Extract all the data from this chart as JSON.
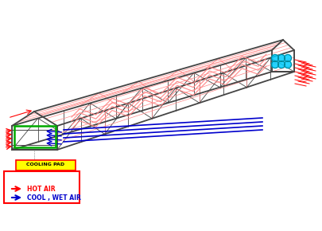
{
  "bg_color": "#ffffff",
  "dark_gray": "#444444",
  "red": "#ff0000",
  "red_light": "#ff8888",
  "blue": "#0000cc",
  "blue_light": "#6666ff",
  "green": "#00aa00",
  "cyan": "#00ccff",
  "yellow": "#ffff00",
  "cooling_pad_label": "COOLING PAD",
  "hot_air_label": "HOT AIR",
  "cool_wet_air_label": "COOL , WET AIR",
  "figw": 4.05,
  "figh": 2.9,
  "dpi": 100
}
